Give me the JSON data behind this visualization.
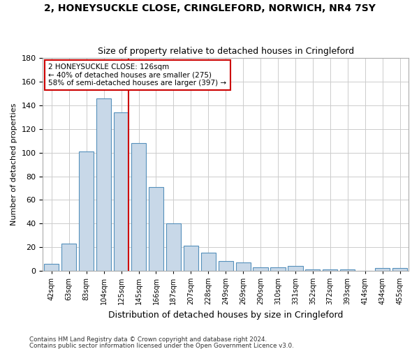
{
  "title": "2, HONEYSUCKLE CLOSE, CRINGLEFORD, NORWICH, NR4 7SY",
  "subtitle": "Size of property relative to detached houses in Cringleford",
  "xlabel": "Distribution of detached houses by size in Cringleford",
  "ylabel": "Number of detached properties",
  "categories": [
    "42sqm",
    "63sqm",
    "83sqm",
    "104sqm",
    "125sqm",
    "145sqm",
    "166sqm",
    "187sqm",
    "207sqm",
    "228sqm",
    "249sqm",
    "269sqm",
    "290sqm",
    "310sqm",
    "331sqm",
    "352sqm",
    "372sqm",
    "393sqm",
    "414sqm",
    "434sqm",
    "455sqm"
  ],
  "values": [
    6,
    23,
    101,
    146,
    134,
    108,
    71,
    40,
    21,
    15,
    8,
    7,
    3,
    3,
    4,
    1,
    1,
    1,
    0,
    2,
    2
  ],
  "bar_color": "#c8d8e8",
  "bar_edge_color": "#5590bb",
  "vline_color": "#cc0000",
  "vline_pos": 4.425,
  "annotation_text": "2 HONEYSUCKLE CLOSE: 126sqm\n← 40% of detached houses are smaller (275)\n58% of semi-detached houses are larger (397) →",
  "annotation_box_color": "#ffffff",
  "annotation_box_edge": "#cc0000",
  "ylim": [
    0,
    180
  ],
  "yticks": [
    0,
    20,
    40,
    60,
    80,
    100,
    120,
    140,
    160,
    180
  ],
  "footer1": "Contains HM Land Registry data © Crown copyright and database right 2024.",
  "footer2": "Contains public sector information licensed under the Open Government Licence v3.0.",
  "bg_color": "#ffffff",
  "grid_color": "#cccccc"
}
